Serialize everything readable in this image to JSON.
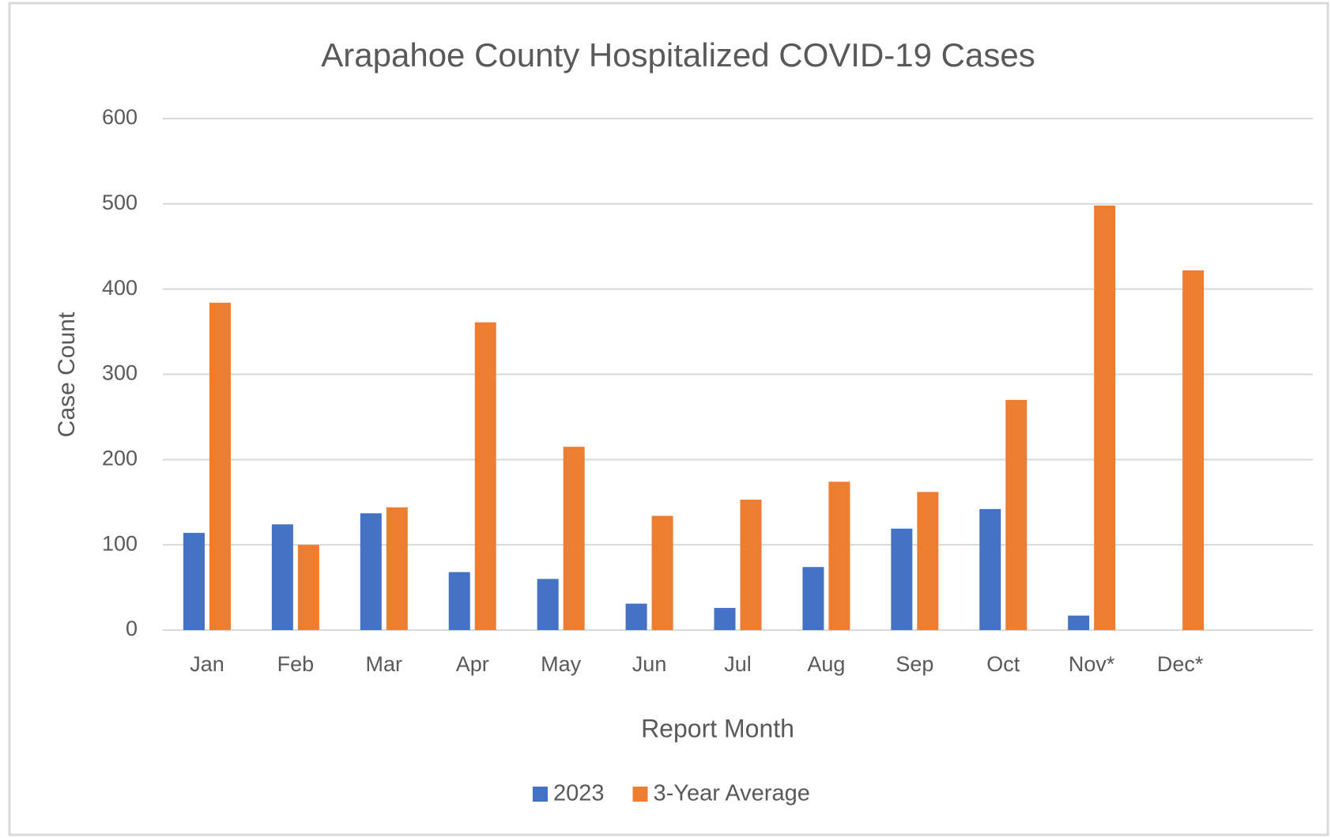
{
  "chart_data": {
    "type": "bar",
    "title": "Arapahoe County Hospitalized COVID-19 Cases",
    "xlabel": "Report Month",
    "ylabel": "Case Count",
    "categories": [
      "Jan",
      "Feb",
      "Mar",
      "Apr",
      "May",
      "Jun",
      "Jul",
      "Aug",
      "Sep",
      "Oct",
      "Nov*",
      "Dec*",
      null
    ],
    "series": [
      {
        "name": "2023",
        "color": "#4472c4",
        "values": [
          114,
          124,
          137,
          68,
          60,
          31,
          26,
          74,
          119,
          142,
          17,
          null,
          null
        ]
      },
      {
        "name": "3-Year Average",
        "color": "#ed7d31",
        "values": [
          384,
          100,
          144,
          361,
          215,
          134,
          153,
          174,
          162,
          270,
          498,
          422,
          null
        ]
      }
    ],
    "ylim": [
      0,
      600
    ],
    "yticks": [
      0,
      100,
      200,
      300,
      400,
      500,
      600
    ],
    "grid": true,
    "legend": "bottom"
  }
}
